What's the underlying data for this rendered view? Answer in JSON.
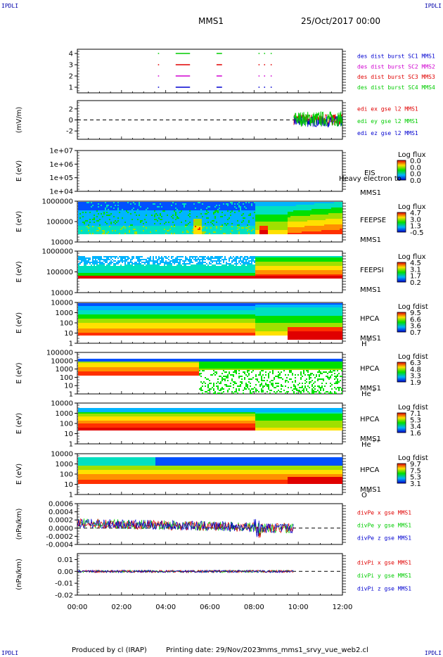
{
  "header": {
    "corner_tl": "IPDLI",
    "corner_tr": "IPDLI",
    "spacecraft": "MMS1",
    "date": "25/Oct/2017 00:00"
  },
  "footer": {
    "corner_bl": "IPDLI",
    "corner_br": "IPDLI",
    "produced": "Produced by cl (IRAP)",
    "printing": "Printing date: 29/Nov/2023",
    "file": "mms_mms1_srvy_vue_web2.cl"
  },
  "colors": {
    "red": "#e00000",
    "green": "#00cc00",
    "blue": "#0000d0",
    "magenta": "#d000d0"
  },
  "chart_data": [
    {
      "id": "burst",
      "type": "scatter",
      "yticks": [
        "4",
        "3",
        "2",
        "1"
      ],
      "legend": [
        {
          "text": "des dist burst SC1 MMS1",
          "color": "#0000d0"
        },
        {
          "text": "des dist burst SC2 MMS2",
          "color": "#d000d0"
        },
        {
          "text": "des dist burst SC3 MMS3",
          "color": "#e00000"
        },
        {
          "text": "des dist burst SC4 MMS4",
          "color": "#00cc00"
        }
      ],
      "intervals_hours": [
        [
          3.65,
          3.7
        ],
        [
          4.45,
          5.1
        ],
        [
          6.3,
          6.55
        ],
        [
          8.2,
          8.25
        ],
        [
          8.45,
          8.5
        ],
        [
          8.75,
          8.8
        ]
      ]
    },
    {
      "id": "edi",
      "type": "line",
      "ylabel": "(mV/m)",
      "yticks": [
        "2",
        "0",
        "-2"
      ],
      "ylim": [
        -3.5,
        3.5
      ],
      "legend": [
        {
          "text": "edi ex gse l2 MMS1",
          "color": "#e00000"
        },
        {
          "text": "edi ey gse l2 MMS1",
          "color": "#00cc00"
        },
        {
          "text": "edi ez gse l2 MMS1",
          "color": "#0000d0"
        }
      ],
      "x_start_hours": 9.8,
      "x_end_hours": 12.0
    },
    {
      "id": "eis",
      "type": "heatmap",
      "ylabel": "E (eV)",
      "yticks": [
        "1e+07",
        "1e+06",
        "1e+05",
        "1e+04"
      ],
      "side": [
        "EIS",
        "MMS1"
      ],
      "overlay": "Heavy electron to",
      "cbar_title": "Log flux",
      "cbar_ticks": [
        "0.0",
        "0.0",
        "0.0",
        "0.0"
      ]
    },
    {
      "id": "feepse",
      "type": "heatmap",
      "ylabel": "E (eV)",
      "yticks": [
        "1000000",
        "100000",
        "10000"
      ],
      "side": [
        "FEEPSE",
        "MMS1"
      ],
      "cbar_title": "Log flux",
      "cbar_ticks": [
        "4.7",
        "3.0",
        "1.3",
        "-0.5"
      ]
    },
    {
      "id": "feepsi",
      "type": "heatmap",
      "ylabel": "E (eV)",
      "yticks": [
        "1000000",
        "100000",
        "10000"
      ],
      "side": [
        "FEEPSI",
        "MMS1"
      ],
      "cbar_title": "Log flux",
      "cbar_ticks": [
        "4.5",
        "3.1",
        "1.7",
        "0.2"
      ]
    },
    {
      "id": "hpca-h",
      "type": "heatmap",
      "ylabel": "E (eV)",
      "yticks": [
        "10000",
        "1000",
        "100",
        "10",
        "1"
      ],
      "side": [
        "HPCA",
        "MMS1",
        "H",
        "+"
      ],
      "cbar_title": "Log fdist",
      "cbar_ticks": [
        "9.5",
        "6.6",
        "3.6",
        "0.7"
      ]
    },
    {
      "id": "hpca-he",
      "type": "heatmap",
      "ylabel": "E (eV)",
      "yticks": [
        "100000",
        "10000",
        "1000",
        "100",
        "10",
        "1"
      ],
      "side": [
        "HPCA",
        "MMS1",
        "He",
        "+"
      ],
      "cbar_title": "Log fdist",
      "cbar_ticks": [
        "6.3",
        "4.8",
        "3.3",
        "1.9"
      ]
    },
    {
      "id": "hpca-hepp",
      "type": "heatmap",
      "ylabel": "E (eV)",
      "yticks": [
        "10000",
        "1000",
        "100",
        "10",
        "1"
      ],
      "side": [
        "HPCA",
        "MMS1",
        "He",
        "++"
      ],
      "cbar_title": "Log fdist",
      "cbar_ticks": [
        "7.1",
        "5.3",
        "3.4",
        "1.6"
      ]
    },
    {
      "id": "hpca-o",
      "type": "heatmap",
      "ylabel": "E (eV)",
      "yticks": [
        "10000",
        "1000",
        "100",
        "10",
        "1"
      ],
      "side": [
        "HPCA",
        "MMS1",
        "O",
        "+"
      ],
      "cbar_title": "Log fdist",
      "cbar_ticks": [
        "9.7",
        "7.5",
        "5.3",
        "3.1"
      ]
    },
    {
      "id": "divpe",
      "type": "line",
      "ylabel": "(nPa/km)",
      "yticks": [
        "0.0006",
        "0.0004",
        "0.0002",
        "0.0000",
        "-0.0002",
        "-0.0004"
      ],
      "ylim": [
        -0.0004,
        0.0006
      ],
      "legend": [
        {
          "text": "divPe x gse MMS1",
          "color": "#e00000"
        },
        {
          "text": "divPe y gse MMS1",
          "color": "#00cc00"
        },
        {
          "text": "divPe z gse MMS1",
          "color": "#0000d0"
        }
      ],
      "x_end_hours": 9.8
    },
    {
      "id": "divpi",
      "type": "line",
      "ylabel": "(nPa/km)",
      "yticks": [
        "0.01",
        "0.00",
        "-0.01",
        "-0.02"
      ],
      "ylim": [
        -0.02,
        0.015
      ],
      "legend": [
        {
          "text": "divPi x gse MMS1",
          "color": "#e00000"
        },
        {
          "text": "divPi y gse MMS1",
          "color": "#00cc00"
        },
        {
          "text": "divPi z gse MMS1",
          "color": "#0000d0"
        }
      ],
      "x_end_hours": 9.8
    }
  ],
  "xaxis": {
    "ticks": [
      "00:00",
      "02:00",
      "04:00",
      "06:00",
      "08:00",
      "10:00",
      "12:00"
    ],
    "range_hours": [
      0,
      12
    ]
  }
}
